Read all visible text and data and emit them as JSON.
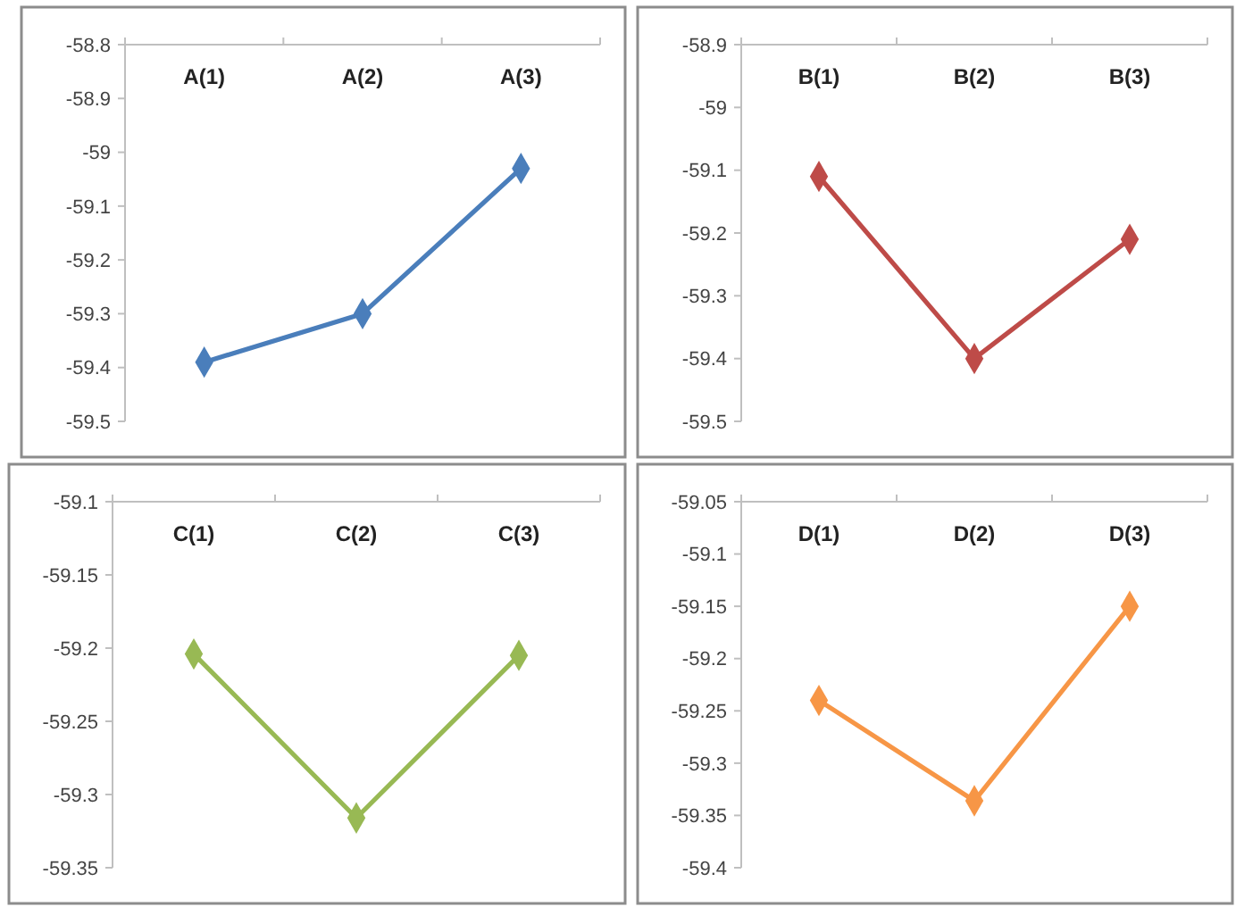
{
  "chart_data": [
    {
      "type": "line",
      "categories": [
        "A(1)",
        "A(2)",
        "A(3)"
      ],
      "series": [
        {
          "color": "#4a7ebb",
          "values": [
            -59.39,
            -59.3,
            -59.03
          ]
        }
      ],
      "ylim": [
        -59.5,
        -58.8
      ],
      "yticks": [
        -58.8,
        -58.9,
        {
          "value": -59,
          "label": "-59"
        },
        -59.1,
        -59.2,
        -59.3,
        -59.4,
        -59.5
      ],
      "marker": "diamond",
      "grid": false
    },
    {
      "type": "line",
      "categories": [
        "B(1)",
        "B(2)",
        "B(3)"
      ],
      "series": [
        {
          "color": "#be4b48",
          "values": [
            -59.11,
            -59.4,
            -59.21
          ]
        }
      ],
      "ylim": [
        -59.5,
        -58.9
      ],
      "yticks": [
        -58.9,
        {
          "value": -59,
          "label": "-59"
        },
        -59.1,
        -59.2,
        -59.3,
        -59.4,
        -59.5
      ],
      "marker": "diamond",
      "grid": false
    },
    {
      "type": "line",
      "categories": [
        "C(1)",
        "C(2)",
        "C(3)"
      ],
      "series": [
        {
          "color": "#98b954",
          "values": [
            -59.204,
            -59.316,
            -59.205
          ]
        }
      ],
      "ylim": [
        -59.35,
        -59.1
      ],
      "yticks": [
        -59.1,
        -59.15,
        -59.2,
        -59.25,
        -59.3,
        -59.35
      ],
      "marker": "diamond",
      "grid": false
    },
    {
      "type": "line",
      "categories": [
        "D(1)",
        "D(2)",
        "D(3)"
      ],
      "series": [
        {
          "color": "#f79646",
          "values": [
            -59.24,
            -59.336,
            -59.15
          ]
        }
      ],
      "ylim": [
        -59.4,
        -59.05
      ],
      "yticks": [
        -59.05,
        -59.1,
        -59.15,
        -59.2,
        -59.25,
        -59.3,
        -59.35,
        -59.4
      ],
      "marker": "diamond",
      "grid": false
    }
  ]
}
